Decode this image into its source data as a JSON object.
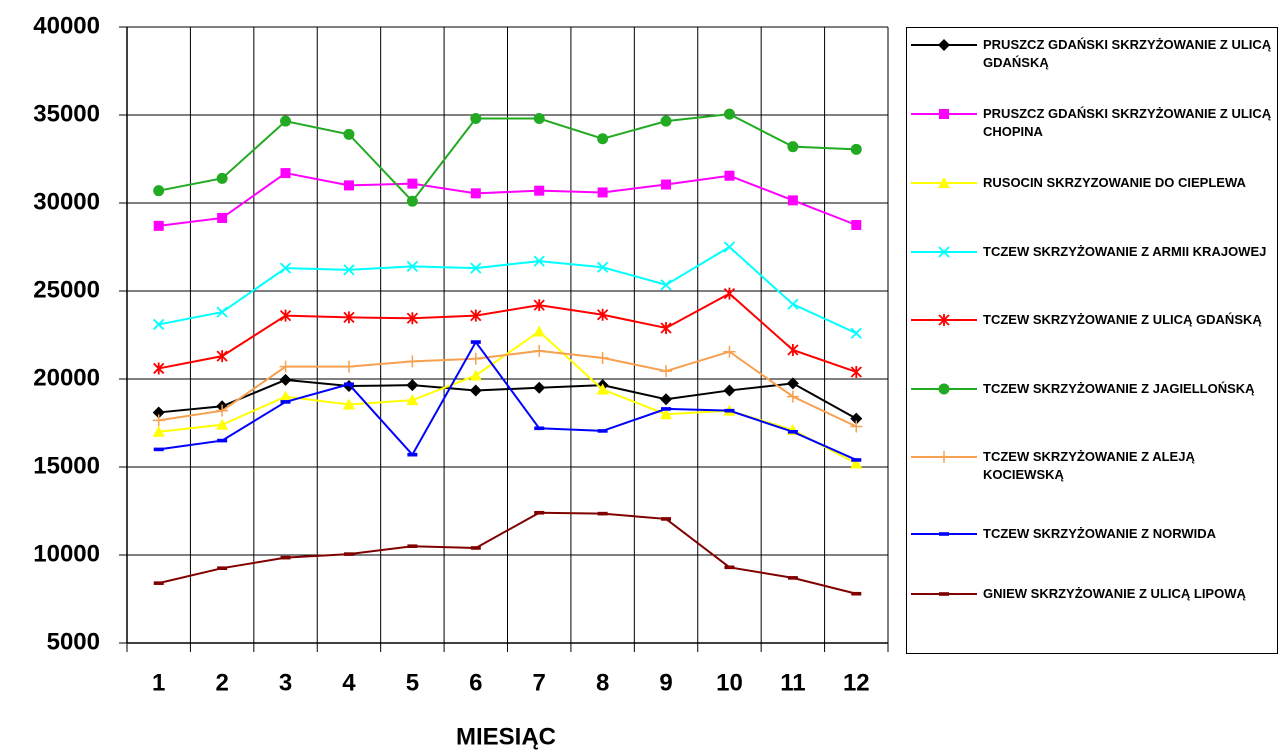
{
  "chart_data": {
    "type": "line",
    "x_label": "MIESIĄC",
    "categories": [
      "1",
      "2",
      "3",
      "4",
      "5",
      "6",
      "7",
      "8",
      "9",
      "10",
      "11",
      "12"
    ],
    "ylim": [
      5000,
      40000
    ],
    "yticks": [
      5000,
      10000,
      15000,
      20000,
      25000,
      30000,
      35000,
      40000
    ],
    "grid": true,
    "legend": "right",
    "series": [
      {
        "name": "PRUSZCZ GDAŃSKI SKRZYŻOWANIE Z ULICĄ GDAŃSKĄ",
        "color": "#000000",
        "marker": "diamond",
        "values": [
          18100,
          18450,
          19950,
          19600,
          19650,
          19350,
          19500,
          19650,
          18850,
          19350,
          19750,
          17750
        ]
      },
      {
        "name": "PRUSZCZ GDAŃSKI SKRZYŻOWANIE Z ULICĄ CHOPINA",
        "color": "#ff00ff",
        "marker": "square",
        "values": [
          28700,
          29150,
          31700,
          31000,
          31100,
          30550,
          30700,
          30600,
          31050,
          31550,
          30150,
          28750
        ]
      },
      {
        "name": "RUSOCIN SKRZYZOWANIE DO CIEPLEWA",
        "color": "#ffff00",
        "marker": "triangle",
        "values": [
          17000,
          17400,
          19000,
          18550,
          18800,
          20200,
          22700,
          19400,
          18000,
          18200,
          17100,
          15200
        ]
      },
      {
        "name": "TCZEW SKRZYŻOWANIE Z ARMII KRAJOWEJ",
        "color": "#00ffff",
        "marker": "x",
        "values": [
          23100,
          23800,
          26300,
          26200,
          26400,
          26300,
          26700,
          26350,
          25350,
          27500,
          24250,
          22600
        ]
      },
      {
        "name": "TCZEW SKRZYŻOWANIE Z ULICĄ GDAŃSKĄ",
        "color": "#ff0000",
        "marker": "star",
        "values": [
          20600,
          21300,
          23600,
          23500,
          23450,
          23600,
          24200,
          23650,
          22900,
          24850,
          21650,
          20400
        ]
      },
      {
        "name": "TCZEW SKRZYŻOWANIE Z JAGIELLOŃSKĄ",
        "color": "#22aa22",
        "marker": "circle",
        "values": [
          30700,
          31400,
          34650,
          33900,
          30100,
          34800,
          34800,
          33650,
          34650,
          35050,
          33200,
          33050
        ]
      },
      {
        "name": "TCZEW SKRZYŻOWANIE Z ALEJĄ KOCIEWSKĄ",
        "color": "#f7a050",
        "marker": "plus",
        "values": [
          17650,
          18200,
          20700,
          20700,
          21000,
          21150,
          21600,
          21200,
          20450,
          21550,
          19000,
          17300
        ]
      },
      {
        "name": "TCZEW SKRZYŻOWANIE Z NORWIDA",
        "color": "#0000ff",
        "marker": "dash",
        "values": [
          16000,
          16500,
          18700,
          19700,
          15700,
          22100,
          17200,
          17050,
          18300,
          18200,
          17000,
          15400
        ]
      },
      {
        "name": "GNIEW SKRZYŻOWANIE Z ULICĄ LIPOWĄ",
        "color": "#800000",
        "marker": "dash",
        "values": [
          8400,
          9250,
          9850,
          10050,
          10500,
          10400,
          12400,
          12350,
          12050,
          9300,
          8700,
          7800
        ]
      }
    ]
  }
}
